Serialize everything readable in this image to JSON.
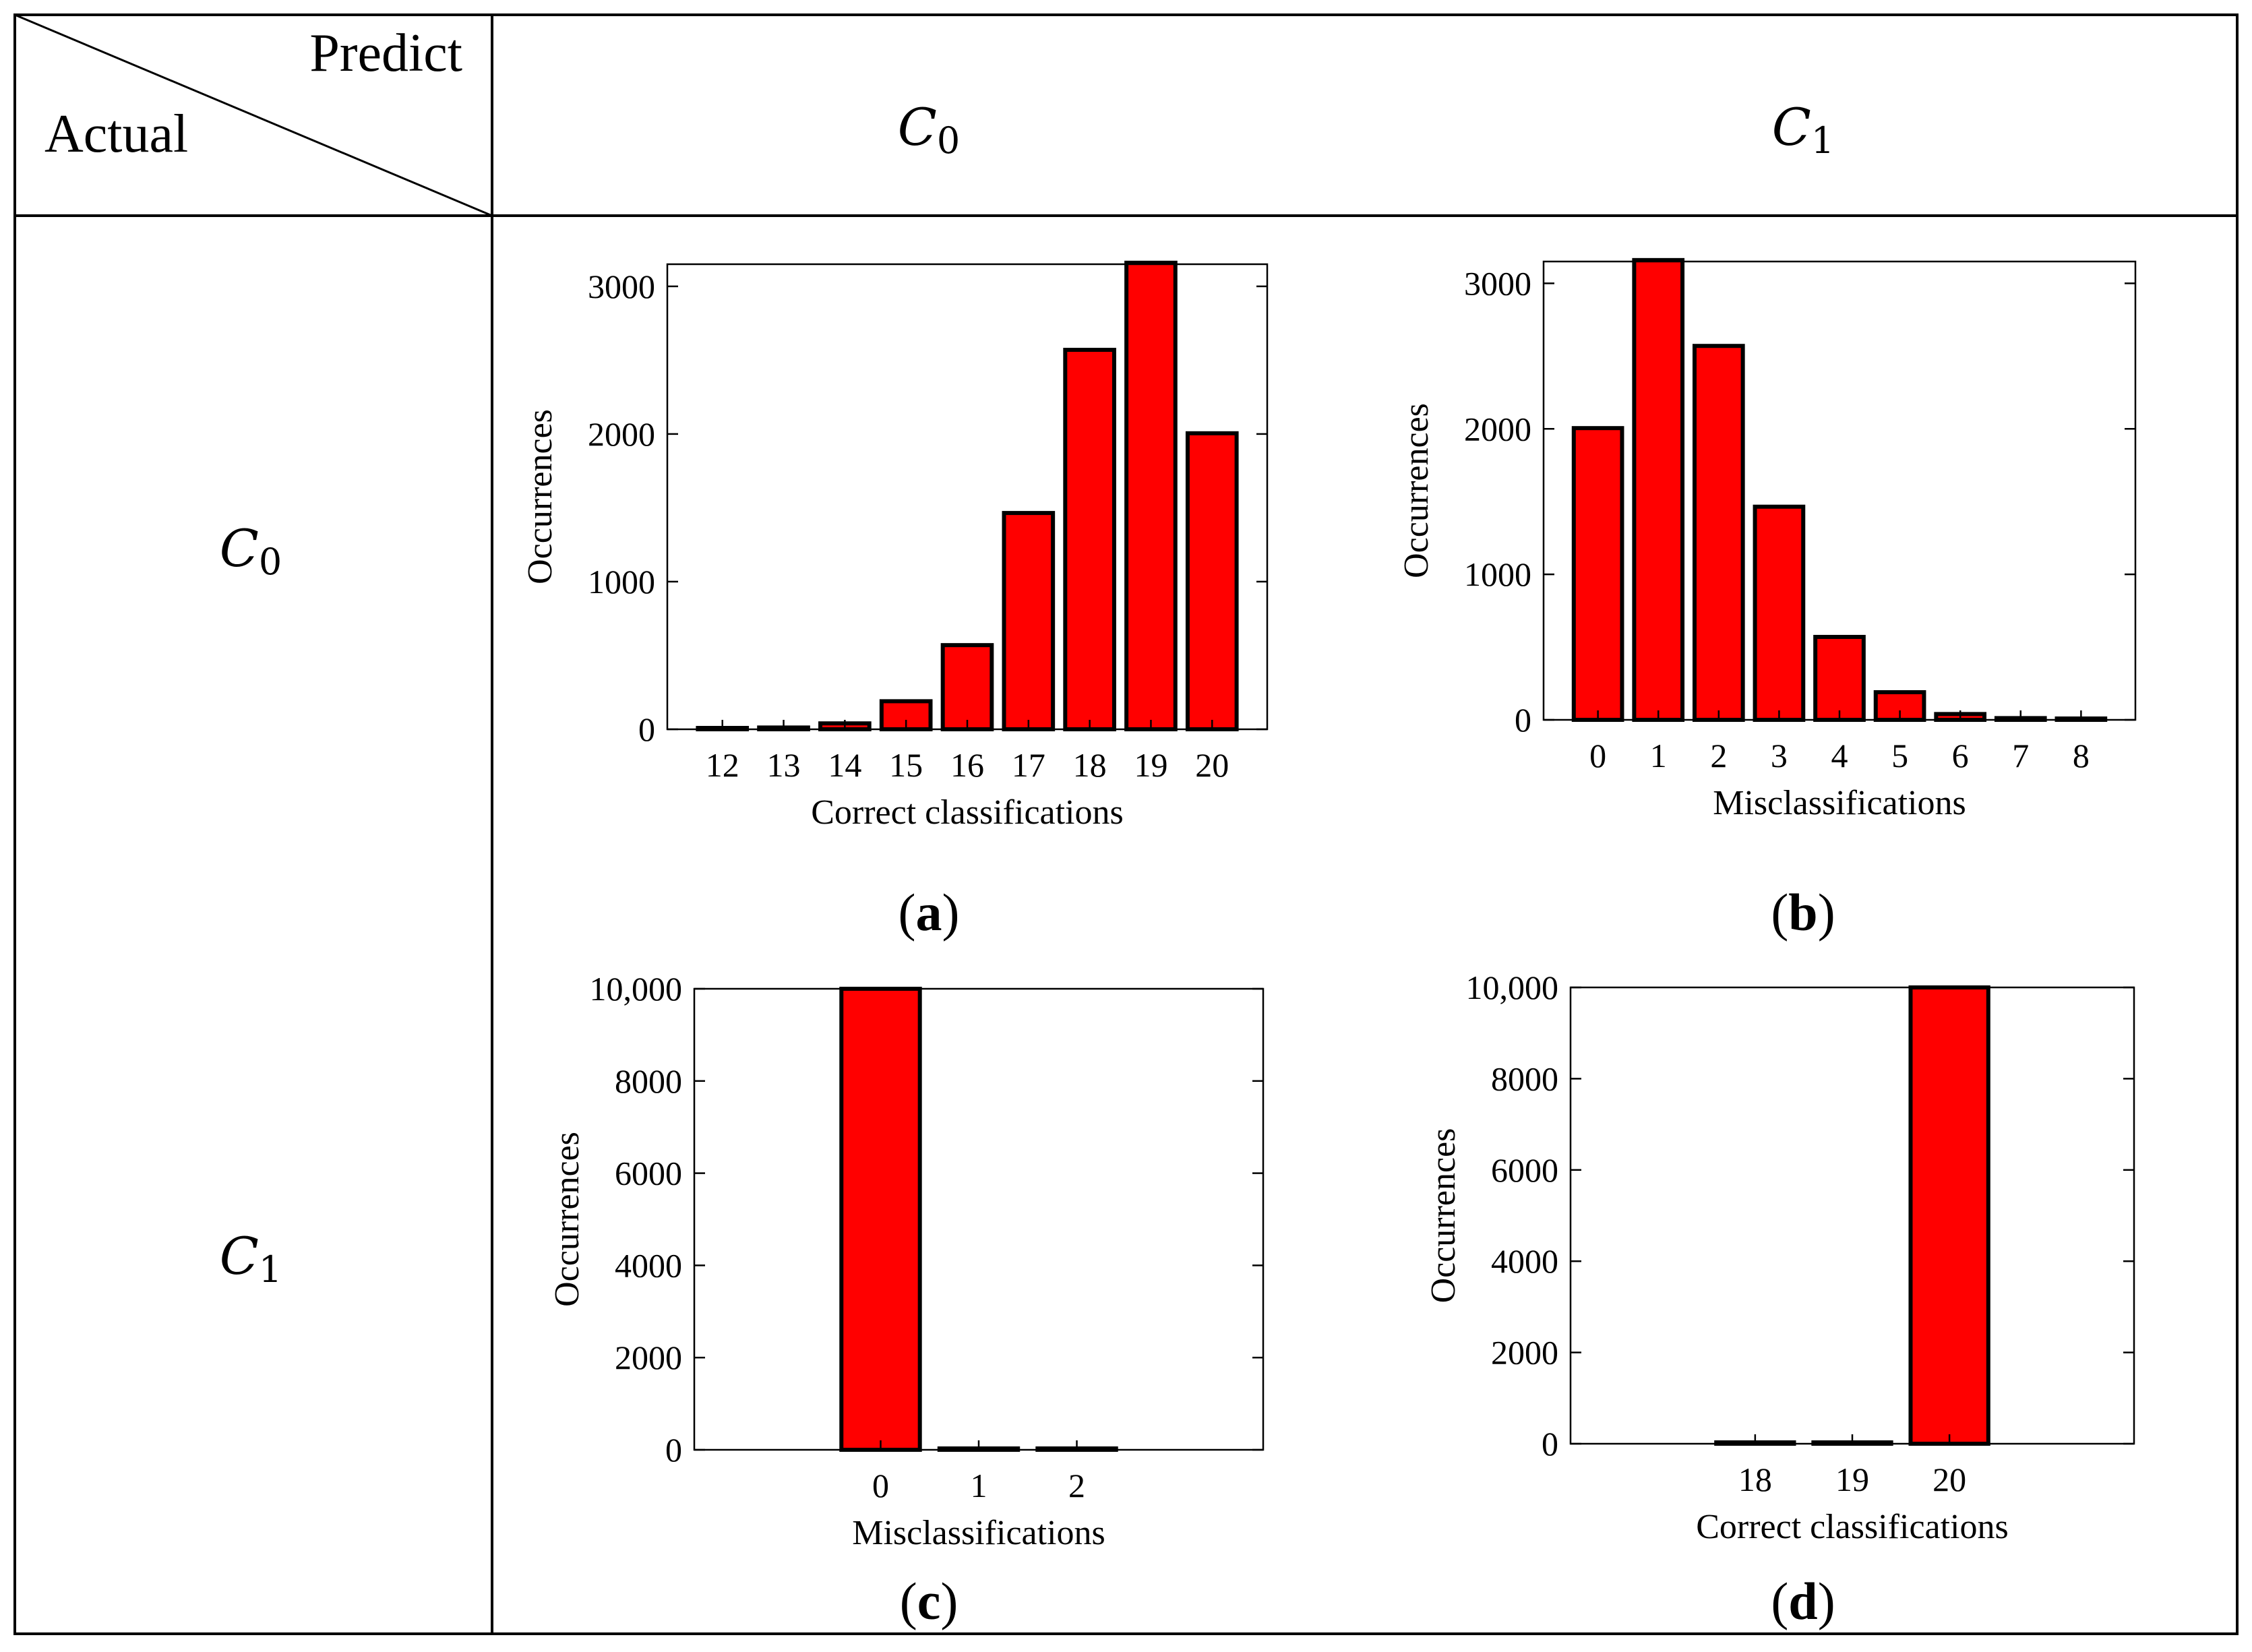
{
  "header": {
    "predict_label": "Predict",
    "actual_label": "Actual",
    "col_labels": [
      {
        "main": "C",
        "sub": "0"
      },
      {
        "main": "C",
        "sub": "1"
      }
    ],
    "row_labels": [
      {
        "main": "C",
        "sub": "0"
      },
      {
        "main": "C",
        "sub": "1"
      }
    ]
  },
  "colors": {
    "bar_fill": "#ff0000",
    "bar_stroke": "#000000",
    "table_lines": "#000000"
  },
  "chart_data": [
    {
      "id": "a",
      "caption": "(a)",
      "type": "bar",
      "categories": [
        "12",
        "13",
        "14",
        "15",
        "16",
        "17",
        "18",
        "19",
        "20"
      ],
      "values": [
        5,
        12,
        40,
        190,
        570,
        1465,
        2570,
        3160,
        2005
      ],
      "xlabel": "Correct classifications",
      "ylabel": "Occurrences",
      "ylim": [
        0,
        3150
      ],
      "yticks": [
        0,
        1000,
        2000,
        3000
      ],
      "ytick_labels": [
        "0",
        "1000",
        "2000",
        "3000"
      ],
      "grid": false
    },
    {
      "id": "b",
      "caption": "(b)",
      "type": "bar",
      "categories": [
        "0",
        "1",
        "2",
        "3",
        "4",
        "5",
        "6",
        "7",
        "8"
      ],
      "values": [
        2005,
        3160,
        2570,
        1465,
        570,
        190,
        40,
        12,
        5
      ],
      "xlabel": "Misclassifications",
      "ylabel": "Occurrences",
      "ylim": [
        0,
        3150
      ],
      "yticks": [
        0,
        1000,
        2000,
        3000
      ],
      "ytick_labels": [
        "0",
        "1000",
        "2000",
        "3000"
      ],
      "grid": false
    },
    {
      "id": "c",
      "caption": "(c)",
      "type": "bar",
      "categories": [
        "0",
        "1",
        "2"
      ],
      "values": [
        10000,
        2,
        1
      ],
      "xlabel": "Misclassifications",
      "ylabel": "Occurrences",
      "ylim": [
        0,
        10000
      ],
      "xlim_pad": 1,
      "yticks": [
        0,
        2000,
        4000,
        6000,
        8000,
        10000
      ],
      "ytick_labels": [
        "0",
        "2000",
        "4000",
        "6000",
        "8000",
        "10,000"
      ],
      "grid": false
    },
    {
      "id": "d",
      "caption": "(d)",
      "type": "bar",
      "categories": [
        "18",
        "19",
        "20"
      ],
      "values": [
        1,
        2,
        10000
      ],
      "xlabel": "Correct classifications",
      "ylabel": "Occurrences",
      "ylim": [
        0,
        10000
      ],
      "xlim_pad": 1,
      "yticks": [
        0,
        2000,
        4000,
        6000,
        8000,
        10000
      ],
      "ytick_labels": [
        "0",
        "2000",
        "4000",
        "6000",
        "8000",
        "10,000"
      ],
      "grid": false
    }
  ]
}
